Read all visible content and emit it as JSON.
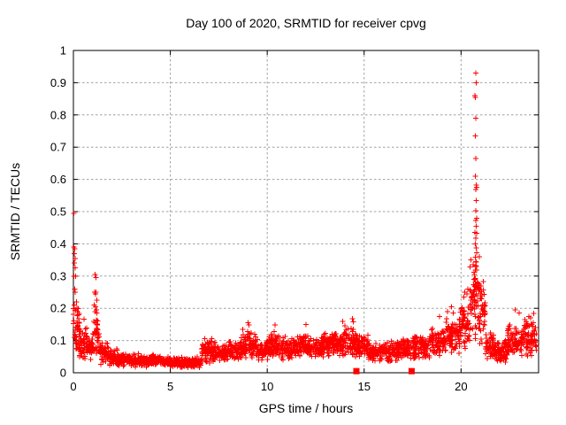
{
  "chart_data": {
    "type": "scatter",
    "title": "Day 100 of 2020, SRMTID for receiver cpvg",
    "xlabel": "GPS time / hours",
    "ylabel": "SRMTID / TECUs",
    "xlim": [
      0,
      24
    ],
    "ylim": [
      0,
      1
    ],
    "xticks": [
      0,
      5,
      10,
      15,
      20
    ],
    "xtick_labels": [
      "0",
      "5",
      "10",
      "15",
      "20"
    ],
    "yticks": [
      0,
      0.1,
      0.2,
      0.3,
      0.4,
      0.5,
      0.6,
      0.7,
      0.8,
      0.9,
      1
    ],
    "ytick_labels": [
      "0",
      "0.1",
      "0.2",
      "0.3",
      "0.4",
      "0.5",
      "0.6",
      "0.7",
      "0.8",
      "0.9",
      "1"
    ],
    "grid": true,
    "grid_style": "dotted-gray",
    "legend": "none",
    "marker": "plus",
    "marker_color": "#ff0000",
    "grid_color": "#a0a0a0",
    "border_color": "#000000",
    "seed": 12345,
    "band_segments": [
      [
        0.0,
        0.3,
        40,
        0.06,
        0.21
      ],
      [
        0.3,
        0.7,
        50,
        0.03,
        0.15
      ],
      [
        0.7,
        1.0,
        35,
        0.03,
        0.12
      ],
      [
        1.0,
        1.35,
        40,
        0.05,
        0.19
      ],
      [
        1.35,
        1.8,
        50,
        0.025,
        0.1
      ],
      [
        1.8,
        2.3,
        55,
        0.02,
        0.075
      ],
      [
        2.3,
        3.2,
        100,
        0.018,
        0.065
      ],
      [
        3.2,
        4.2,
        110,
        0.015,
        0.06
      ],
      [
        4.2,
        5.0,
        90,
        0.015,
        0.055
      ],
      [
        5.0,
        5.8,
        90,
        0.012,
        0.048
      ],
      [
        5.8,
        6.6,
        90,
        0.012,
        0.05
      ],
      [
        6.6,
        7.3,
        80,
        0.025,
        0.105
      ],
      [
        7.3,
        8.0,
        80,
        0.03,
        0.09
      ],
      [
        8.0,
        8.7,
        80,
        0.035,
        0.11
      ],
      [
        8.7,
        9.4,
        80,
        0.04,
        0.13
      ],
      [
        9.4,
        10.1,
        80,
        0.035,
        0.11
      ],
      [
        10.1,
        10.7,
        70,
        0.04,
        0.13
      ],
      [
        10.7,
        11.4,
        80,
        0.035,
        0.11
      ],
      [
        11.4,
        12.1,
        80,
        0.04,
        0.125
      ],
      [
        12.1,
        12.9,
        90,
        0.04,
        0.115
      ],
      [
        12.9,
        13.7,
        90,
        0.045,
        0.135
      ],
      [
        13.7,
        14.5,
        90,
        0.045,
        0.14
      ],
      [
        14.5,
        15.2,
        80,
        0.04,
        0.125
      ],
      [
        15.2,
        16.0,
        90,
        0.03,
        0.095
      ],
      [
        16.0,
        16.8,
        90,
        0.03,
        0.1
      ],
      [
        16.8,
        17.6,
        90,
        0.035,
        0.115
      ],
      [
        17.6,
        18.4,
        90,
        0.04,
        0.12
      ],
      [
        18.4,
        19.2,
        90,
        0.05,
        0.145
      ],
      [
        19.2,
        19.9,
        80,
        0.055,
        0.175
      ],
      [
        19.9,
        20.45,
        65,
        0.07,
        0.22
      ],
      [
        20.45,
        20.95,
        70,
        0.1,
        0.36
      ],
      [
        20.95,
        21.25,
        40,
        0.08,
        0.3
      ],
      [
        21.25,
        21.7,
        50,
        0.04,
        0.13
      ],
      [
        21.7,
        22.4,
        80,
        0.03,
        0.105
      ],
      [
        22.4,
        23.2,
        90,
        0.045,
        0.155
      ],
      [
        23.2,
        23.9,
        80,
        0.05,
        0.165
      ]
    ],
    "outlier_points": [
      [
        0.02,
        0.495
      ],
      [
        0.03,
        0.39
      ],
      [
        0.06,
        0.385
      ],
      [
        0.04,
        0.37
      ],
      [
        0.08,
        0.355
      ],
      [
        0.05,
        0.34
      ],
      [
        0.1,
        0.325
      ],
      [
        0.03,
        0.3
      ],
      [
        0.12,
        0.3
      ],
      [
        0.07,
        0.26
      ],
      [
        0.09,
        0.25
      ],
      [
        0.15,
        0.22
      ],
      [
        0.05,
        0.21
      ],
      [
        0.18,
        0.2
      ],
      [
        1.12,
        0.305
      ],
      [
        1.16,
        0.295
      ],
      [
        1.1,
        0.25
      ],
      [
        1.17,
        0.25
      ],
      [
        1.13,
        0.245
      ],
      [
        1.2,
        0.225
      ],
      [
        1.08,
        0.21
      ],
      [
        1.15,
        0.205
      ],
      [
        1.18,
        0.195
      ],
      [
        1.11,
        0.19
      ],
      [
        1.22,
        0.185
      ],
      [
        9.0,
        0.155
      ],
      [
        9.05,
        0.148
      ],
      [
        10.4,
        0.148
      ],
      [
        12.0,
        0.15
      ],
      [
        13.9,
        0.16
      ],
      [
        14.4,
        0.168
      ],
      [
        14.45,
        0.158
      ],
      [
        18.9,
        0.175
      ],
      [
        19.3,
        0.19
      ],
      [
        19.5,
        0.205
      ],
      [
        19.6,
        0.185
      ],
      [
        20.15,
        0.235
      ],
      [
        20.2,
        0.25
      ],
      [
        20.3,
        0.245
      ],
      [
        20.35,
        0.26
      ],
      [
        20.75,
        0.93
      ],
      [
        20.78,
        0.9
      ],
      [
        20.72,
        0.86
      ],
      [
        20.74,
        0.855
      ],
      [
        20.76,
        0.79
      ],
      [
        20.73,
        0.735
      ],
      [
        20.77,
        0.665
      ],
      [
        20.74,
        0.61
      ],
      [
        20.78,
        0.582
      ],
      [
        20.8,
        0.575
      ],
      [
        20.76,
        0.568
      ],
      [
        20.79,
        0.535
      ],
      [
        20.77,
        0.503
      ],
      [
        20.8,
        0.48
      ],
      [
        20.75,
        0.473
      ],
      [
        20.78,
        0.455
      ],
      [
        20.72,
        0.435
      ],
      [
        20.76,
        0.418
      ],
      [
        20.74,
        0.4
      ],
      [
        20.79,
        0.388
      ],
      [
        20.81,
        0.372
      ],
      [
        20.73,
        0.358
      ],
      [
        20.77,
        0.345
      ],
      [
        20.75,
        0.332
      ],
      [
        20.8,
        0.318
      ],
      [
        20.7,
        0.305
      ],
      [
        20.68,
        0.29
      ],
      [
        20.85,
        0.28
      ],
      [
        20.9,
        0.27
      ],
      [
        20.95,
        0.26
      ],
      [
        21.0,
        0.245
      ],
      [
        21.05,
        0.23
      ],
      [
        20.6,
        0.22
      ],
      [
        21.1,
        0.21
      ],
      [
        20.55,
        0.2
      ],
      [
        21.15,
        0.195
      ],
      [
        22.8,
        0.195
      ],
      [
        23.0,
        0.185
      ],
      [
        23.5,
        0.175
      ],
      [
        23.6,
        0.17
      ],
      [
        23.3,
        0.165
      ]
    ],
    "zero_square_points": [
      [
        14.6,
        0.005
      ],
      [
        17.45,
        0.005
      ]
    ]
  }
}
